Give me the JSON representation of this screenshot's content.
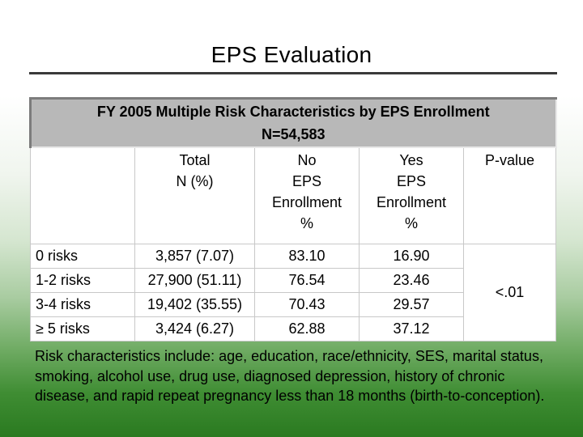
{
  "slide": {
    "title": "EPS Evaluation"
  },
  "table": {
    "caption_line1": "FY 2005 Multiple Risk Characteristics by EPS Enrollment",
    "caption_line2": "N=54,583",
    "headers": {
      "total_line1": "Total",
      "total_line2": "N (%)",
      "no_line1": "No",
      "no_line2": "EPS",
      "no_line3": "Enrollment",
      "no_line4": "%",
      "yes_line1": "Yes",
      "yes_line2": "EPS",
      "yes_line3": "Enrollment",
      "yes_line4": "%",
      "pvalue": "P-value"
    },
    "rows": [
      {
        "label": "0 risks",
        "total": "3,857 (7.07)",
        "no": "83.10",
        "yes": "16.90"
      },
      {
        "label": "1-2 risks",
        "total": "27,900 (51.11)",
        "no": "76.54",
        "yes": "23.46"
      },
      {
        "label": "3-4 risks",
        "total": "19,402 (35.55)",
        "no": "70.43",
        "yes": "29.57"
      },
      {
        "label": "≥ 5 risks",
        "total": "3,424 (6.27)",
        "no": "62.88",
        "yes": "37.12"
      }
    ],
    "pvalue": "<.01"
  },
  "footnote": "Risk characteristics include: age, education, race/ethnicity, SES, marital status, smoking, alcohol use, drug use, diagnosed depression, history of chronic disease, and rapid repeat pregnancy less than 18 months (birth-to-conception)."
}
